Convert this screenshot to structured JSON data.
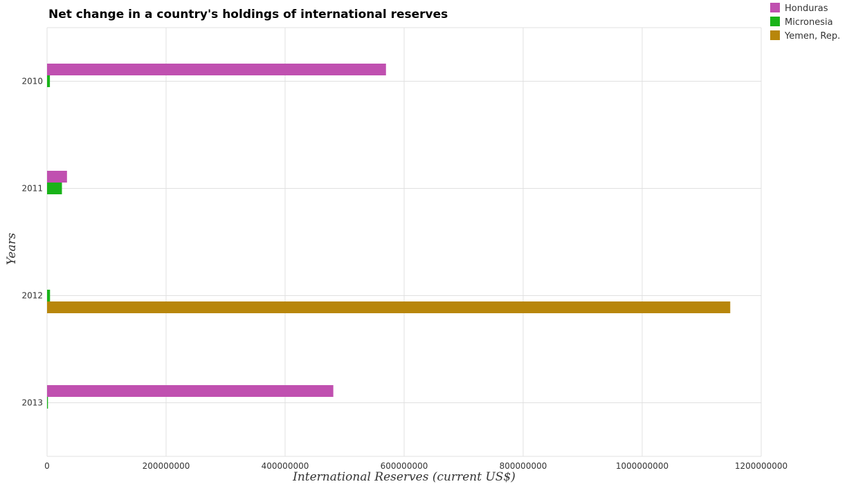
{
  "chart_data": {
    "type": "bar",
    "orientation": "horizontal",
    "title": "Net change in a country's holdings of international reserves",
    "xlabel": "International Reserves (current US$)",
    "ylabel": "Years",
    "categories": [
      "2010",
      "2011",
      "2012",
      "2013"
    ],
    "series": [
      {
        "name": "Honduras",
        "color": "#c050b0",
        "values": [
          569500000,
          33500000,
          0,
          481000000
        ]
      },
      {
        "name": "Micronesia",
        "color": "#19b319",
        "values": [
          4800000,
          25000000,
          5000000,
          1500000
        ]
      },
      {
        "name": "Yemen, Rep.",
        "color": "#b8860b",
        "values": [
          0,
          0,
          1148000000,
          0
        ]
      }
    ],
    "xlim": [
      0,
      1200000000
    ],
    "xticks": [
      0,
      200000000,
      400000000,
      600000000,
      800000000,
      1000000000,
      1200000000
    ],
    "xtick_labels": [
      "0",
      "200000000",
      "400000000",
      "600000000",
      "800000000",
      "1000000000",
      "1200000000"
    ],
    "grid": true,
    "legend_position": "top-right"
  }
}
